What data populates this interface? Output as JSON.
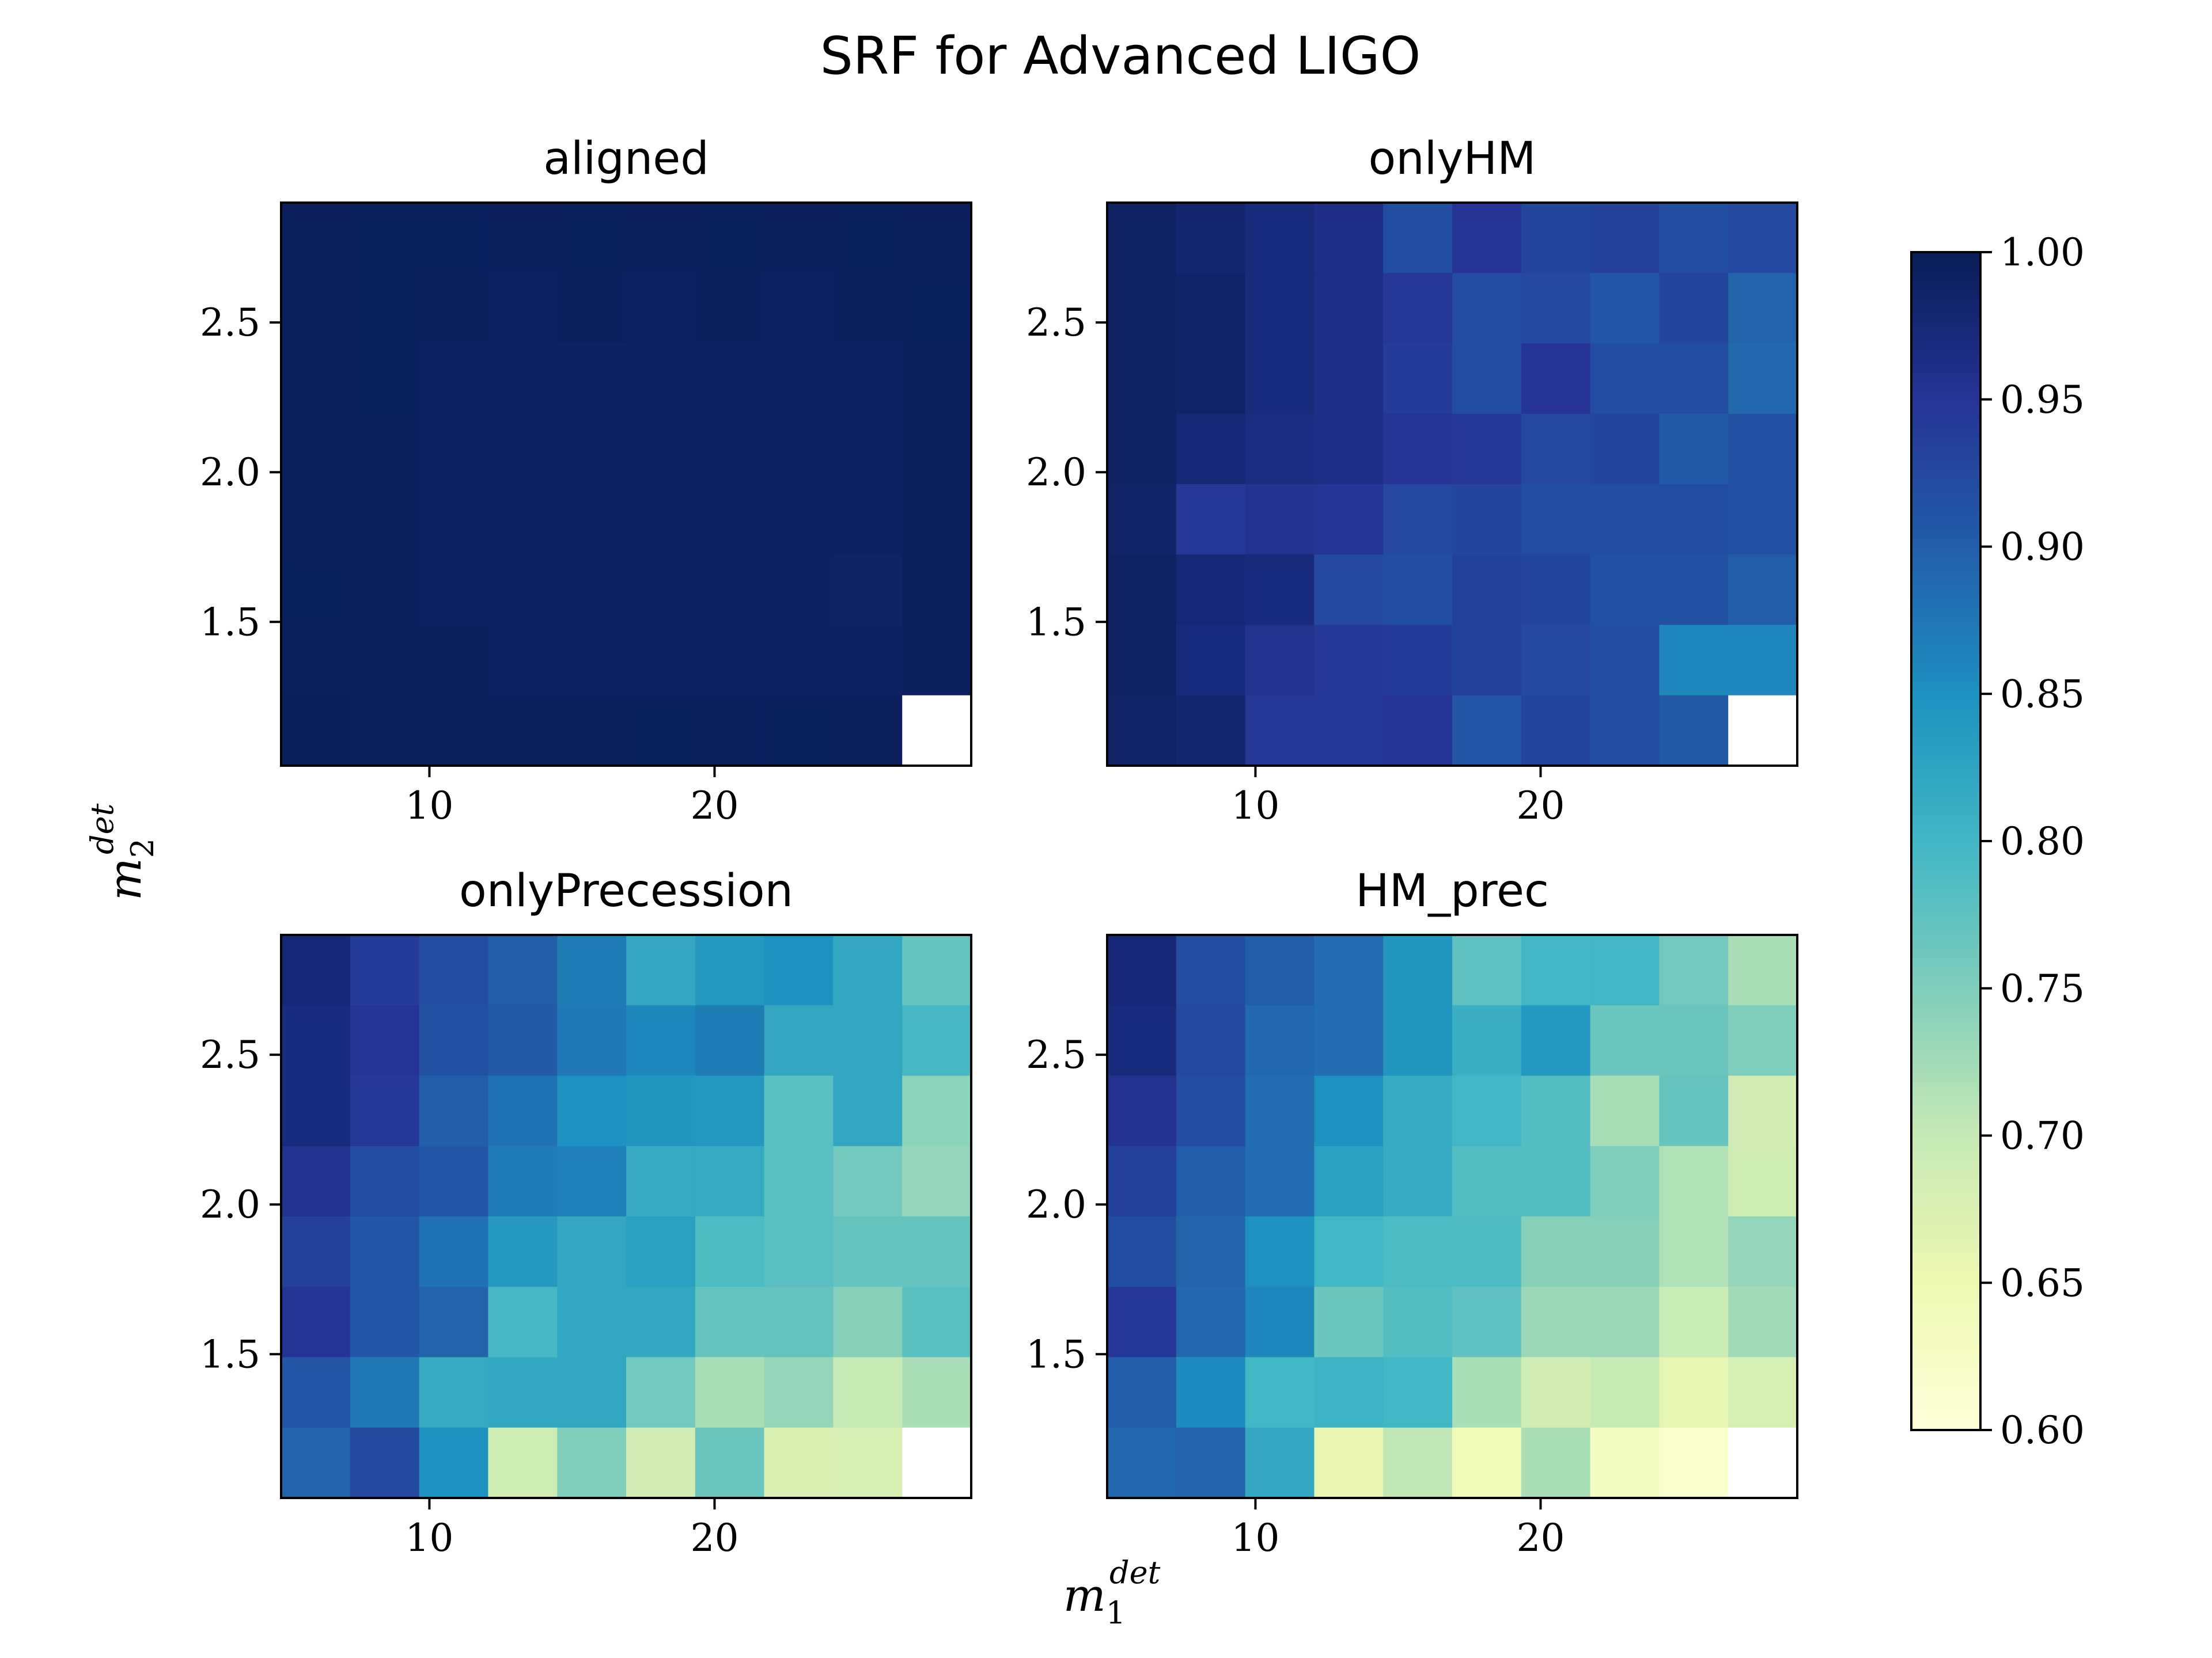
{
  "title": "SRF for Advanced LIGO",
  "xlabel": "m",
  "xlabel_sub": "1",
  "xlabel_sup": "det",
  "ylabel": "m",
  "ylabel_sub": "2",
  "ylabel_sup": "det",
  "colormap": [
    "#ffffd9",
    "#edf8b1",
    "#c7e9b4",
    "#7fcdbb",
    "#41b6c4",
    "#1d91c0",
    "#225ea8",
    "#253494",
    "#081d58"
  ],
  "colorbar": {
    "range": [
      0.6,
      1.0
    ],
    "ticks": [
      "0.60",
      "0.65",
      "0.70",
      "0.75",
      "0.80",
      "0.85",
      "0.90",
      "0.95",
      "1.00"
    ]
  },
  "chart_data": [
    {
      "type": "heatmap",
      "title": "aligned",
      "x_ticks": [
        "10",
        "20"
      ],
      "y_ticks": [
        "1.5",
        "2.0",
        "2.5"
      ],
      "x_tick_values": [
        10,
        20
      ],
      "y_tick_values": [
        1.5,
        2.0,
        2.5
      ],
      "xlim": [
        4.8,
        29
      ],
      "ylim": [
        1.02,
        2.9
      ],
      "x_edges": [
        4.8,
        7.22,
        9.64,
        12.06,
        14.48,
        16.9,
        19.32,
        21.74,
        24.16,
        26.58,
        29
      ],
      "y_edges": [
        1.02,
        1.255,
        1.49,
        1.725,
        1.96,
        2.195,
        2.43,
        2.665,
        2.9
      ],
      "z_rows_top_to_bottom": [
        [
          0.995,
          0.994,
          0.994,
          0.993,
          0.994,
          0.993,
          0.994,
          0.993,
          0.994,
          0.995
        ],
        [
          0.995,
          0.994,
          0.993,
          0.992,
          0.993,
          0.992,
          0.993,
          0.992,
          0.993,
          0.994
        ],
        [
          0.995,
          0.994,
          0.992,
          0.991,
          0.991,
          0.991,
          0.992,
          0.992,
          0.992,
          0.993
        ],
        [
          0.995,
          0.993,
          0.992,
          0.991,
          0.991,
          0.991,
          0.991,
          0.991,
          0.992,
          0.993
        ],
        [
          0.995,
          0.993,
          0.992,
          0.991,
          0.991,
          0.991,
          0.992,
          0.992,
          0.992,
          0.993
        ],
        [
          0.996,
          0.993,
          0.992,
          0.992,
          0.992,
          0.991,
          0.992,
          0.991,
          0.99,
          0.993
        ],
        [
          0.995,
          0.993,
          0.993,
          0.992,
          0.992,
          0.992,
          0.992,
          0.991,
          0.991,
          0.993
        ],
        [
          0.997,
          0.995,
          0.993,
          0.993,
          0.993,
          0.994,
          0.993,
          0.994,
          0.995,
          null
        ]
      ]
    },
    {
      "type": "heatmap",
      "title": "onlyHM",
      "x_ticks": [
        "10",
        "20"
      ],
      "y_ticks": [
        "1.5",
        "2.0",
        "2.5"
      ],
      "x_tick_values": [
        10,
        20
      ],
      "y_tick_values": [
        1.5,
        2.0,
        2.5
      ],
      "xlim": [
        4.8,
        29
      ],
      "ylim": [
        1.02,
        2.9
      ],
      "x_edges": [
        4.8,
        7.22,
        9.64,
        12.06,
        14.48,
        16.9,
        19.32,
        21.74,
        24.16,
        26.58,
        29
      ],
      "y_edges": [
        1.02,
        1.255,
        1.49,
        1.725,
        1.96,
        2.195,
        2.43,
        2.665,
        2.9
      ],
      "z_rows_top_to_bottom": [
        [
          0.99,
          0.98,
          0.97,
          0.96,
          0.92,
          0.95,
          0.93,
          0.935,
          0.92,
          0.925
        ],
        [
          0.99,
          0.985,
          0.97,
          0.96,
          0.945,
          0.92,
          0.925,
          0.91,
          0.93,
          0.895
        ],
        [
          0.99,
          0.985,
          0.97,
          0.96,
          0.94,
          0.92,
          0.95,
          0.92,
          0.92,
          0.89
        ],
        [
          0.99,
          0.975,
          0.965,
          0.96,
          0.95,
          0.945,
          0.925,
          0.93,
          0.905,
          0.915
        ],
        [
          0.985,
          0.945,
          0.955,
          0.95,
          0.925,
          0.93,
          0.92,
          0.92,
          0.92,
          0.915
        ],
        [
          0.99,
          0.975,
          0.97,
          0.925,
          0.92,
          0.935,
          0.93,
          0.915,
          0.915,
          0.9
        ],
        [
          0.99,
          0.97,
          0.955,
          0.945,
          0.94,
          0.935,
          0.925,
          0.92,
          0.86,
          0.86
        ],
        [
          0.985,
          0.98,
          0.945,
          0.945,
          0.95,
          0.91,
          0.93,
          0.92,
          0.905,
          null
        ]
      ]
    },
    {
      "type": "heatmap",
      "title": "onlyPrecession",
      "x_ticks": [
        "10",
        "20"
      ],
      "y_ticks": [
        "1.5",
        "2.0",
        "2.5"
      ],
      "x_tick_values": [
        10,
        20
      ],
      "y_tick_values": [
        1.5,
        2.0,
        2.5
      ],
      "xlim": [
        4.8,
        29
      ],
      "ylim": [
        1.02,
        2.9
      ],
      "x_edges": [
        4.8,
        7.22,
        9.64,
        12.06,
        14.48,
        16.9,
        19.32,
        21.74,
        24.16,
        26.58,
        29
      ],
      "y_edges": [
        1.02,
        1.255,
        1.49,
        1.725,
        1.96,
        2.195,
        2.43,
        2.665,
        2.9
      ],
      "z_rows_top_to_bottom": [
        [
          0.975,
          0.94,
          0.92,
          0.9,
          0.87,
          0.82,
          0.84,
          0.85,
          0.82,
          0.77
        ],
        [
          0.97,
          0.95,
          0.915,
          0.905,
          0.875,
          0.86,
          0.87,
          0.82,
          0.82,
          0.795
        ],
        [
          0.97,
          0.945,
          0.9,
          0.88,
          0.85,
          0.845,
          0.84,
          0.78,
          0.82,
          0.74
        ],
        [
          0.955,
          0.92,
          0.91,
          0.87,
          0.865,
          0.815,
          0.815,
          0.78,
          0.76,
          0.735
        ],
        [
          0.935,
          0.91,
          0.88,
          0.84,
          0.82,
          0.83,
          0.79,
          0.78,
          0.77,
          0.77
        ],
        [
          0.95,
          0.91,
          0.895,
          0.795,
          0.82,
          0.82,
          0.77,
          0.77,
          0.745,
          0.78
        ],
        [
          0.91,
          0.875,
          0.815,
          0.82,
          0.82,
          0.76,
          0.72,
          0.735,
          0.7,
          0.72
        ],
        [
          0.895,
          0.925,
          0.85,
          0.69,
          0.75,
          0.685,
          0.765,
          0.675,
          0.68,
          null
        ]
      ]
    },
    {
      "type": "heatmap",
      "title": "HM_prec",
      "x_ticks": [
        "10",
        "20"
      ],
      "y_ticks": [
        "1.5",
        "2.0",
        "2.5"
      ],
      "x_tick_values": [
        10,
        20
      ],
      "y_tick_values": [
        1.5,
        2.0,
        2.5
      ],
      "xlim": [
        4.8,
        29
      ],
      "ylim": [
        1.02,
        2.9
      ],
      "x_edges": [
        4.8,
        7.22,
        9.64,
        12.06,
        14.48,
        16.9,
        19.32,
        21.74,
        24.16,
        26.58,
        29
      ],
      "y_edges": [
        1.02,
        1.255,
        1.49,
        1.725,
        1.96,
        2.195,
        2.43,
        2.665,
        2.9
      ],
      "z_rows_top_to_bottom": [
        [
          0.975,
          0.92,
          0.9,
          0.885,
          0.845,
          0.775,
          0.8,
          0.8,
          0.76,
          0.72
        ],
        [
          0.97,
          0.925,
          0.89,
          0.885,
          0.845,
          0.81,
          0.84,
          0.765,
          0.765,
          0.75
        ],
        [
          0.955,
          0.92,
          0.885,
          0.85,
          0.815,
          0.8,
          0.785,
          0.72,
          0.77,
          0.685
        ],
        [
          0.935,
          0.9,
          0.885,
          0.83,
          0.815,
          0.785,
          0.785,
          0.75,
          0.715,
          0.69
        ],
        [
          0.92,
          0.895,
          0.85,
          0.8,
          0.79,
          0.79,
          0.745,
          0.745,
          0.715,
          0.735
        ],
        [
          0.945,
          0.89,
          0.86,
          0.765,
          0.785,
          0.775,
          0.73,
          0.73,
          0.695,
          0.725
        ],
        [
          0.9,
          0.855,
          0.8,
          0.805,
          0.8,
          0.72,
          0.685,
          0.7,
          0.66,
          0.68
        ],
        [
          0.89,
          0.895,
          0.82,
          0.655,
          0.705,
          0.64,
          0.72,
          0.63,
          0.615,
          null
        ]
      ]
    }
  ]
}
